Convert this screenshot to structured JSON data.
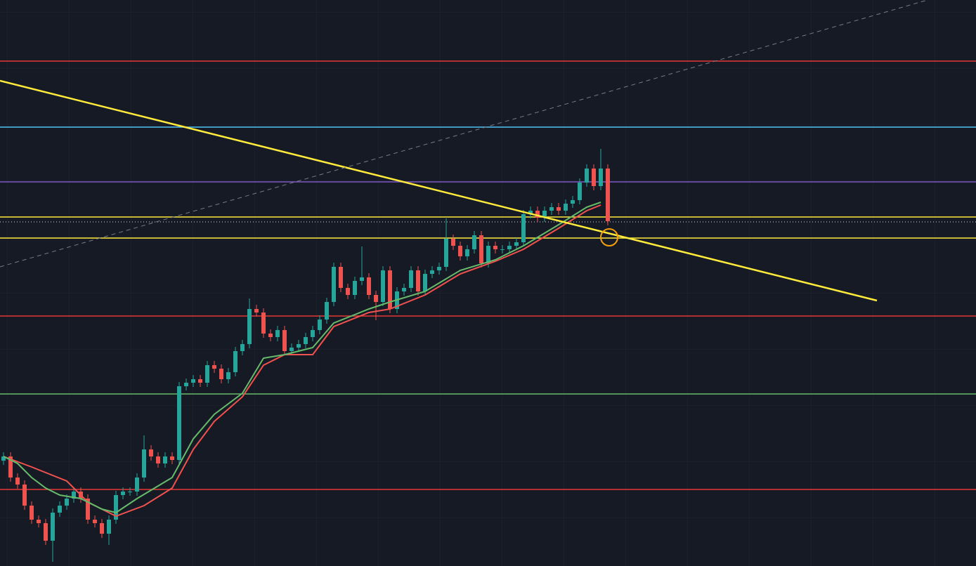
{
  "chart_data": {
    "type": "candlestick",
    "xlim": [
      -0.5,
      138.4
    ],
    "ylim": [
      0,
      806
    ],
    "up_color": "#26a69a",
    "down_color": "#ef5350",
    "open": [
      150,
      156,
      126,
      116,
      86,
      66,
      61,
      36,
      76,
      86,
      96,
      106,
      96,
      66,
      61,
      46,
      66,
      101,
      106,
      106,
      126,
      166,
      156,
      146,
      156,
      151,
      256,
      261,
      266,
      261,
      286,
      281,
      266,
      276,
      306,
      316,
      366,
      361,
      331,
      326,
      336,
      306,
      311,
      316,
      326,
      336,
      351,
      376,
      426,
      396,
      386,
      406,
      411,
      386,
      376,
      421,
      366,
      391,
      396,
      421,
      391,
      416,
      421,
      426,
      466,
      456,
      441,
      451,
      471,
      431,
      456,
      451,
      451,
      456,
      461,
      501,
      506,
      496,
      506,
      511,
      506,
      516,
      521,
      546,
      566,
      541,
      566
    ],
    "high": [
      162,
      162,
      132,
      122,
      92,
      72,
      67,
      82,
      92,
      102,
      112,
      112,
      102,
      72,
      67,
      72,
      107,
      112,
      112,
      132,
      186,
      172,
      162,
      162,
      162,
      262,
      267,
      272,
      272,
      292,
      292,
      287,
      282,
      312,
      322,
      381,
      372,
      367,
      337,
      342,
      342,
      317,
      322,
      332,
      342,
      357,
      382,
      432,
      432,
      402,
      412,
      455,
      417,
      392,
      427,
      427,
      397,
      402,
      427,
      427,
      422,
      427,
      432,
      495,
      472,
      462,
      457,
      477,
      477,
      462,
      462,
      457,
      462,
      467,
      507,
      512,
      512,
      512,
      517,
      517,
      522,
      527,
      552,
      572,
      572,
      594,
      572
    ],
    "low": [
      144,
      120,
      110,
      80,
      60,
      55,
      30,
      6,
      70,
      80,
      90,
      90,
      60,
      55,
      40,
      30,
      60,
      95,
      100,
      100,
      120,
      150,
      140,
      140,
      145,
      145,
      250,
      255,
      255,
      255,
      275,
      260,
      260,
      270,
      300,
      310,
      355,
      325,
      320,
      320,
      300,
      300,
      305,
      310,
      320,
      330,
      345,
      370,
      390,
      380,
      380,
      400,
      380,
      350,
      370,
      360,
      360,
      385,
      390,
      385,
      385,
      410,
      415,
      420,
      450,
      435,
      435,
      445,
      425,
      425,
      445,
      445,
      445,
      450,
      455,
      495,
      490,
      490,
      500,
      500,
      500,
      510,
      515,
      540,
      535,
      535,
      485
    ],
    "close": [
      156,
      126,
      116,
      86,
      66,
      61,
      36,
      76,
      86,
      96,
      106,
      96,
      66,
      61,
      46,
      66,
      101,
      106,
      106,
      126,
      166,
      156,
      146,
      156,
      151,
      256,
      261,
      266,
      261,
      286,
      281,
      266,
      276,
      306,
      316,
      366,
      361,
      331,
      326,
      336,
      306,
      311,
      316,
      326,
      336,
      351,
      376,
      426,
      396,
      386,
      406,
      411,
      386,
      376,
      421,
      366,
      391,
      396,
      421,
      391,
      416,
      421,
      426,
      466,
      456,
      441,
      451,
      471,
      431,
      456,
      451,
      451,
      456,
      461,
      501,
      506,
      496,
      506,
      511,
      506,
      516,
      521,
      546,
      566,
      541,
      566,
      491
    ],
    "series": [
      {
        "color": "#ef5350",
        "x": [
          0,
          4,
          9,
          12,
          16,
          20,
          24,
          27,
          30,
          34,
          37,
          40,
          44,
          47,
          52,
          55,
          60,
          65,
          70,
          74,
          79,
          83,
          85
        ],
        "values": [
          156,
          141,
          121,
          91,
          71,
          86,
          111,
          166,
          206,
          241,
          286,
          301,
          301,
          341,
          361,
          366,
          386,
          416,
          434,
          451,
          481,
          506,
          514
        ]
      },
      {
        "color": "#66bb6a",
        "x": [
          0,
          2,
          4,
          6,
          8,
          11,
          14,
          16,
          19,
          24,
          27,
          30,
          34,
          37,
          40,
          44,
          47,
          52,
          55,
          60,
          65,
          70,
          74,
          79,
          83,
          85
        ],
        "values": [
          156,
          146,
          126,
          111,
          101,
          96,
          81,
          76,
          96,
          126,
          181,
          216,
          246,
          296,
          301,
          311,
          346,
          366,
          376,
          391,
          421,
          436,
          456,
          486,
          511,
          518
        ]
      }
    ],
    "levels": [
      {
        "value": 719,
        "color": "#e53935",
        "style": "solid"
      },
      {
        "value": 625,
        "color": "#4fc3f7",
        "style": "solid"
      },
      {
        "value": 547,
        "color": "#7e57c2",
        "style": "solid"
      },
      {
        "value": 497,
        "color": "#ffeb3b",
        "style": "solid"
      },
      {
        "value": 490,
        "color": "#9598a1",
        "style": "dotted"
      },
      {
        "value": 467,
        "color": "#ffeb3b",
        "style": "solid"
      },
      {
        "value": 356,
        "color": "#e53935",
        "style": "solid"
      },
      {
        "value": 245,
        "color": "#66bb6a",
        "style": "solid"
      },
      {
        "value": 109,
        "color": "#e53935",
        "style": "solid"
      }
    ],
    "trendlines": [
      {
        "color": "#ffeb3b",
        "style": "solid",
        "x": [
          -0.5,
          124.3
        ],
        "values": [
          691,
          378
        ]
      },
      {
        "color": "#787b86",
        "style": "dashed",
        "x": [
          -0.5,
          131.5
        ],
        "values": [
          426,
          806
        ]
      }
    ]
  }
}
